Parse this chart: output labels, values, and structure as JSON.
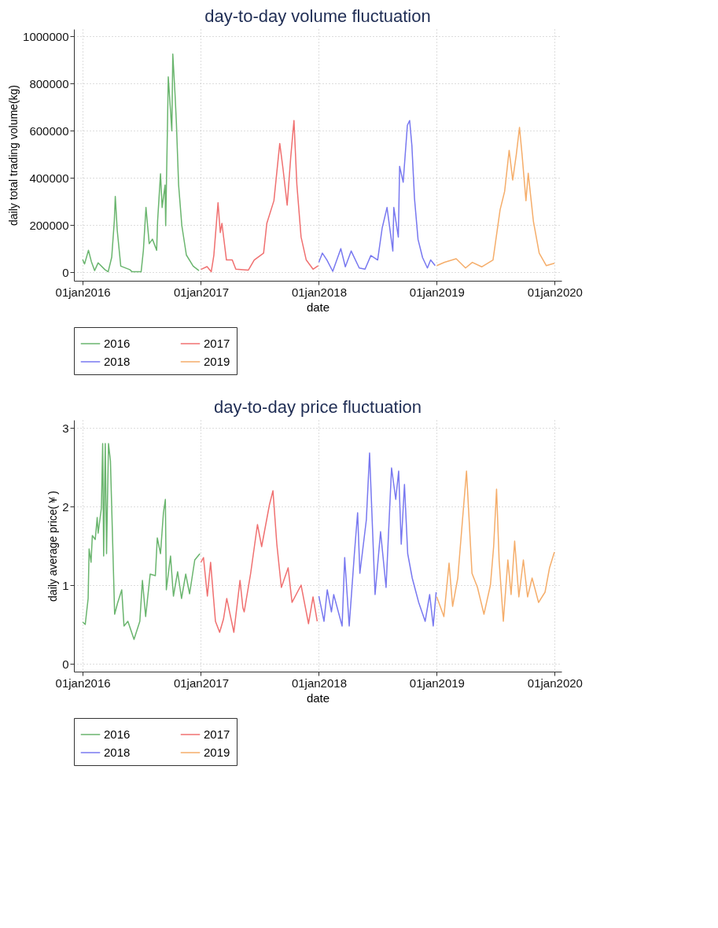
{
  "chart_data": [
    {
      "type": "line",
      "title": "day-to-day volume fluctuation",
      "xlabel": "date",
      "ylabel": "daily total trading volume(kg)",
      "xlim": [
        "2015-12-05",
        "2020-01-22"
      ],
      "ylim": [
        -35000,
        1030000
      ],
      "xticks": [
        {
          "value": "2016-01-01",
          "label": "01jan2016"
        },
        {
          "value": "2017-01-01",
          "label": "01jan2017"
        },
        {
          "value": "2018-01-01",
          "label": "01jan2018"
        },
        {
          "value": "2019-01-01",
          "label": "01jan2019"
        },
        {
          "value": "2020-01-01",
          "label": "01jan2020"
        }
      ],
      "yticks": [
        0,
        200000,
        400000,
        600000,
        800000,
        1000000
      ],
      "grid": true,
      "legend": "bottom",
      "line_style": "solid",
      "series": [
        {
          "name": "2016",
          "color": "#6ab56e",
          "x": [
            "2016-01-01",
            "2016-01-07",
            "2016-01-19",
            "2016-01-28",
            "2016-02-07",
            "2016-02-18",
            "2016-03-10",
            "2016-03-20",
            "2016-03-31",
            "2016-04-08",
            "2016-04-11",
            "2016-04-17",
            "2016-04-28",
            "2016-05-26",
            "2016-06-02",
            "2016-06-30",
            "2016-07-07",
            "2016-07-15",
            "2016-07-25",
            "2016-08-04",
            "2016-08-17",
            "2016-08-20",
            "2016-08-29",
            "2016-09-03",
            "2016-09-12",
            "2016-09-14",
            "2016-09-19",
            "2016-09-22",
            "2016-09-28",
            "2016-10-03",
            "2016-10-06",
            "2016-10-13",
            "2016-10-17",
            "2016-10-24",
            "2016-11-03",
            "2016-11-17",
            "2016-12-08",
            "2016-12-26"
          ],
          "values": [
            55000,
            36000,
            94000,
            46000,
            8000,
            41000,
            12000,
            3000,
            65000,
            218000,
            322000,
            179000,
            27000,
            12000,
            3000,
            3000,
            94000,
            275000,
            122000,
            141000,
            94000,
            218000,
            418000,
            275000,
            370000,
            198000,
            580000,
            828000,
            704000,
            599000,
            924000,
            752000,
            637000,
            370000,
            198000,
            74000,
            27000,
            8000
          ]
        },
        {
          "name": "2017",
          "color": "#f07070",
          "x": [
            "2017-01-01",
            "2017-01-20",
            "2017-02-02",
            "2017-02-10",
            "2017-02-23",
            "2017-03-02",
            "2017-03-07",
            "2017-03-21",
            "2017-04-08",
            "2017-04-19",
            "2017-05-28",
            "2017-06-15",
            "2017-07-14",
            "2017-07-24",
            "2017-08-15",
            "2017-09-02",
            "2017-09-12",
            "2017-09-25",
            "2017-10-06",
            "2017-10-16",
            "2017-10-25",
            "2017-11-07",
            "2017-11-23",
            "2017-12-14",
            "2017-12-30"
          ],
          "values": [
            13000,
            25000,
            3000,
            72000,
            295000,
            169000,
            208000,
            53000,
            53000,
            14000,
            10000,
            53000,
            82000,
            208000,
            304000,
            546000,
            440000,
            285000,
            488000,
            643000,
            372000,
            150000,
            53000,
            14000,
            29000
          ]
        },
        {
          "name": "2018",
          "color": "#7878f0",
          "x": [
            "2018-01-01",
            "2018-01-12",
            "2018-01-26",
            "2018-02-13",
            "2018-03-10",
            "2018-03-24",
            "2018-04-11",
            "2018-05-06",
            "2018-05-24",
            "2018-06-11",
            "2018-07-02",
            "2018-07-16",
            "2018-07-31",
            "2018-08-18",
            "2018-08-21",
            "2018-09-04",
            "2018-09-08",
            "2018-09-19",
            "2018-10-02",
            "2018-10-09",
            "2018-10-16",
            "2018-10-24",
            "2018-11-04",
            "2018-11-18",
            "2018-12-03",
            "2018-12-13",
            "2018-12-27"
          ],
          "values": [
            43000,
            82000,
            53000,
            5000,
            101000,
            24000,
            91000,
            19000,
            14000,
            72000,
            53000,
            188000,
            275000,
            91000,
            275000,
            150000,
            449000,
            382000,
            623000,
            643000,
            536000,
            314000,
            140000,
            63000,
            19000,
            53000,
            29000
          ]
        },
        {
          "name": "2019",
          "color": "#f5ad6a",
          "x": [
            "2019-01-01",
            "2019-01-25",
            "2019-03-02",
            "2019-03-31",
            "2019-04-21",
            "2019-05-20",
            "2019-06-24",
            "2019-07-16",
            "2019-07-30",
            "2019-08-13",
            "2019-08-24",
            "2019-09-04",
            "2019-09-14",
            "2019-09-22",
            "2019-10-04",
            "2019-10-11",
            "2019-10-27",
            "2019-11-14",
            "2019-12-06",
            "2019-12-31"
          ],
          "values": [
            29000,
            43000,
            58000,
            19000,
            43000,
            24000,
            53000,
            266000,
            343000,
            517000,
            391000,
            498000,
            614000,
            498000,
            304000,
            420000,
            217000,
            82000,
            29000,
            39000
          ]
        }
      ]
    },
    {
      "type": "line",
      "title": "day-to-day price fluctuation",
      "xlabel": "date",
      "ylabel": "daily average price(￥)",
      "xlim": [
        "2015-12-05",
        "2020-01-22"
      ],
      "ylim": [
        -0.1,
        3.1
      ],
      "xticks": [
        {
          "value": "2016-01-01",
          "label": "01jan2016"
        },
        {
          "value": "2017-01-01",
          "label": "01jan2017"
        },
        {
          "value": "2018-01-01",
          "label": "01jan2018"
        },
        {
          "value": "2019-01-01",
          "label": "01jan2019"
        },
        {
          "value": "2020-01-01",
          "label": "01jan2020"
        }
      ],
      "yticks": [
        0,
        1,
        2,
        3
      ],
      "grid": true,
      "legend": "bottom",
      "line_style": "solid",
      "series": [
        {
          "name": "2016",
          "color": "#6ab56e",
          "x": [
            "2016-01-01",
            "2016-01-09",
            "2016-01-18",
            "2016-01-21",
            "2016-01-27",
            "2016-01-31",
            "2016-02-09",
            "2016-02-15",
            "2016-02-18",
            "2016-02-28",
            "2016-03-03",
            "2016-03-06",
            "2016-03-11",
            "2016-03-15",
            "2016-03-21",
            "2016-03-27",
            "2016-04-09",
            "2016-04-18",
            "2016-05-01",
            "2016-05-08",
            "2016-05-20",
            "2016-06-08",
            "2016-06-26",
            "2016-07-04",
            "2016-07-14",
            "2016-07-28",
            "2016-08-13",
            "2016-08-19",
            "2016-08-29",
            "2016-09-07",
            "2016-09-13",
            "2016-09-16",
            "2016-09-29",
            "2016-10-08",
            "2016-10-21",
            "2016-11-02",
            "2016-11-15",
            "2016-11-27",
            "2016-12-13",
            "2016-12-29"
          ],
          "values": [
            0.53,
            0.5,
            0.83,
            1.46,
            1.29,
            1.63,
            1.58,
            1.86,
            1.66,
            1.98,
            2.8,
            1.37,
            2.8,
            1.4,
            2.8,
            2.58,
            0.63,
            0.77,
            0.94,
            0.48,
            0.54,
            0.31,
            0.54,
            1.06,
            0.6,
            1.14,
            1.12,
            1.6,
            1.4,
            1.92,
            2.09,
            0.94,
            1.37,
            0.86,
            1.17,
            0.83,
            1.14,
            0.89,
            1.32,
            1.4
          ]
        },
        {
          "name": "2017",
          "color": "#f07070",
          "x": [
            "2017-01-01",
            "2017-01-09",
            "2017-01-21",
            "2017-01-31",
            "2017-02-15",
            "2017-02-28",
            "2017-03-12",
            "2017-03-22",
            "2017-04-13",
            "2017-05-02",
            "2017-05-11",
            "2017-05-15",
            "2017-06-04",
            "2017-06-25",
            "2017-07-08",
            "2017-08-01",
            "2017-08-12",
            "2017-08-24",
            "2017-09-07",
            "2017-09-28",
            "2017-10-10",
            "2017-11-07",
            "2017-11-30",
            "2017-12-14",
            "2017-12-27"
          ],
          "values": [
            1.29,
            1.35,
            0.86,
            1.29,
            0.54,
            0.4,
            0.57,
            0.83,
            0.4,
            1.06,
            0.71,
            0.66,
            1.15,
            1.77,
            1.49,
            2.02,
            2.2,
            1.52,
            0.97,
            1.22,
            0.78,
            1.0,
            0.51,
            0.85,
            0.54
          ]
        },
        {
          "name": "2018",
          "color": "#7878f0",
          "x": [
            "2018-01-01",
            "2018-01-17",
            "2018-01-27",
            "2018-02-09",
            "2018-02-16",
            "2018-03-14",
            "2018-03-22",
            "2018-04-05",
            "2018-04-21",
            "2018-05-01",
            "2018-05-08",
            "2018-05-28",
            "2018-06-07",
            "2018-06-24",
            "2018-07-11",
            "2018-07-28",
            "2018-08-14",
            "2018-08-27",
            "2018-09-05",
            "2018-09-13",
            "2018-09-23",
            "2018-10-03",
            "2018-10-17",
            "2018-11-06",
            "2018-11-26",
            "2018-12-10",
            "2018-12-21",
            "2018-12-30"
          ],
          "values": [
            0.86,
            0.54,
            0.94,
            0.66,
            0.88,
            0.48,
            1.35,
            0.48,
            1.4,
            1.92,
            1.15,
            1.83,
            2.68,
            0.88,
            1.68,
            0.97,
            2.49,
            2.09,
            2.45,
            1.52,
            2.28,
            1.4,
            1.09,
            0.78,
            0.54,
            0.88,
            0.48,
            0.91
          ]
        },
        {
          "name": "2019",
          "color": "#f5ad6a",
          "x": [
            "2019-01-01",
            "2019-01-23",
            "2019-02-08",
            "2019-02-19",
            "2019-03-07",
            "2019-03-21",
            "2019-04-03",
            "2019-04-20",
            "2019-05-07",
            "2019-05-27",
            "2019-06-16",
            "2019-06-26",
            "2019-07-05",
            "2019-07-13",
            "2019-07-26",
            "2019-08-09",
            "2019-08-19",
            "2019-08-30",
            "2019-09-12",
            "2019-09-26",
            "2019-10-09",
            "2019-10-23",
            "2019-11-12",
            "2019-12-02",
            "2019-12-16",
            "2019-12-31"
          ],
          "values": [
            0.85,
            0.6,
            1.28,
            0.73,
            1.09,
            1.8,
            2.45,
            1.15,
            0.97,
            0.63,
            1.0,
            1.49,
            2.22,
            1.31,
            0.54,
            1.32,
            0.88,
            1.56,
            0.85,
            1.32,
            0.85,
            1.09,
            0.78,
            0.91,
            1.22,
            1.42
          ]
        }
      ]
    }
  ]
}
